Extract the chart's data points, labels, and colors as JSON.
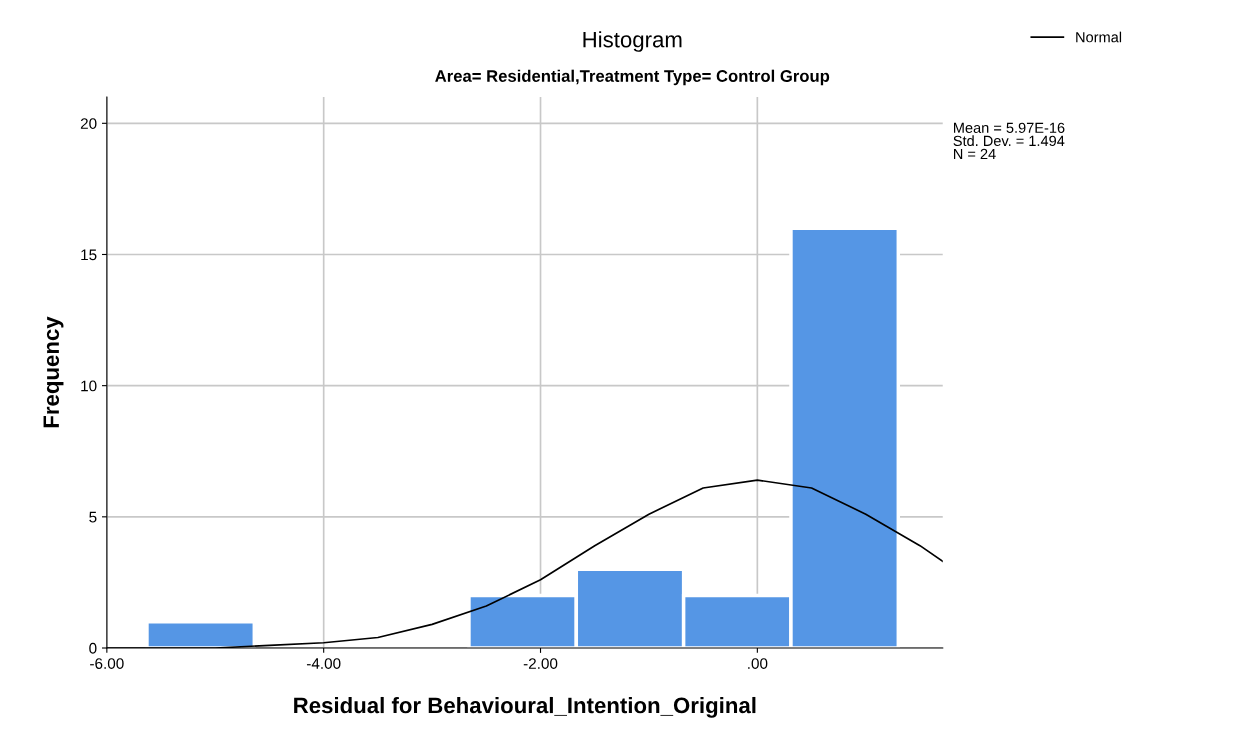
{
  "chart_data": {
    "type": "histogram",
    "title": "Histogram",
    "subtitle": "Area= Residential,Treatment Type= Control Group",
    "xlabel": "Residual for Behavioural_Intention_Original",
    "ylabel": "Frequency",
    "bins": [
      -5.63,
      -4.64,
      -3.65,
      -2.66,
      -1.67,
      -0.68,
      0.31,
      1.3
    ],
    "values": [
      1,
      0,
      0,
      2,
      3,
      2,
      16
    ],
    "color": "#5596e5",
    "series": [
      {
        "name": "Normal",
        "type": "line",
        "color": "#000000",
        "x": [
          -6,
          -5.5,
          -5,
          -4.5,
          -4,
          -3.5,
          -3,
          -2.5,
          -2,
          -1.5,
          -1,
          -0.5,
          0,
          0.5,
          1,
          1.5,
          1.71
        ],
        "values": [
          0,
          0,
          0,
          0.1,
          0.2,
          0.4,
          0.9,
          1.6,
          2.6,
          3.9,
          5.1,
          6.1,
          6.4,
          6.1,
          5.1,
          3.9,
          3.3
        ]
      }
    ],
    "xlim": [
      -6,
      1.71
    ],
    "ylim": [
      0,
      21
    ],
    "xticks": [
      {
        "value": -6,
        "label": "-6.00"
      },
      {
        "value": -4,
        "label": "-4.00"
      },
      {
        "value": -2,
        "label": "-2.00"
      },
      {
        "value": 0,
        "label": ".00"
      }
    ],
    "yticks": [
      0,
      5,
      10,
      15,
      20
    ],
    "grid": true,
    "legend": "top right",
    "marker": "none",
    "line_style": "solid",
    "annotations": [
      "Mean = 5.97E-16\nStd. Dev. = 1.494\nN = 24"
    ]
  }
}
